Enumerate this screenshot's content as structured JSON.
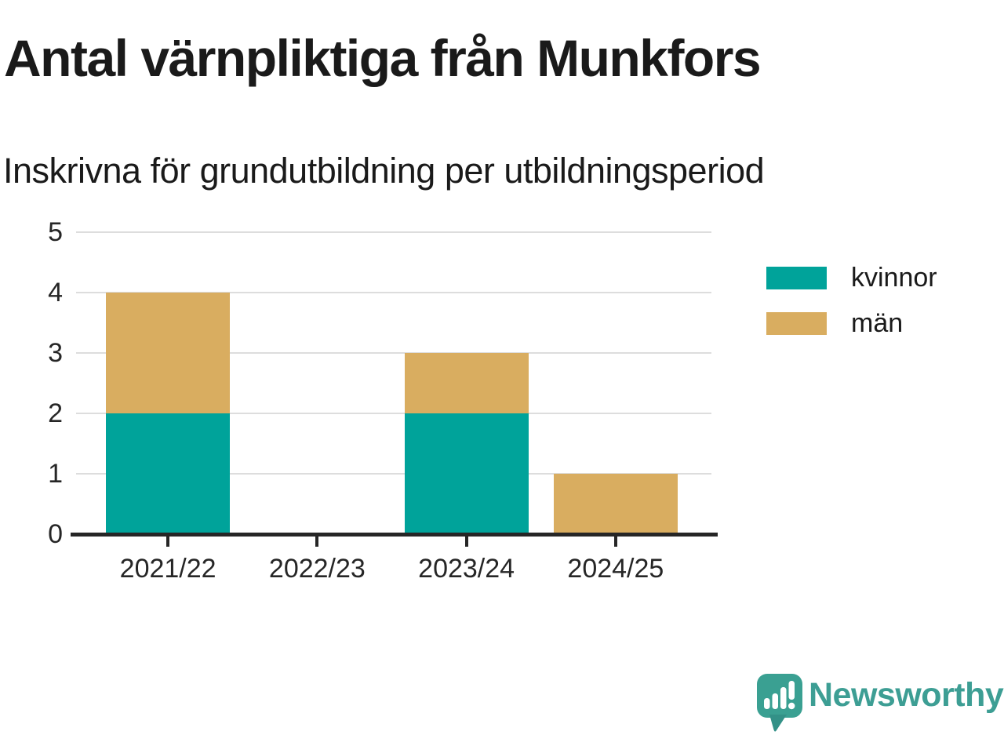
{
  "header": {
    "title": "Antal värnpliktiga från Munkfors",
    "subtitle": "Inskrivna för grundutbildning per utbildningsperiod"
  },
  "chart_data": {
    "type": "bar",
    "stacked": true,
    "title": "Antal värnpliktiga från Munkfors",
    "subtitle": "Inskrivna för grundutbildning per utbildningsperiod",
    "categories": [
      "2021/22",
      "2022/23",
      "2023/24",
      "2024/25"
    ],
    "series": [
      {
        "name": "kvinnor",
        "color": "#00a39a",
        "values": [
          2,
          0,
          2,
          0
        ]
      },
      {
        "name": "män",
        "color": "#d9ad60",
        "values": [
          2,
          0,
          1,
          1
        ]
      }
    ],
    "totals": [
      4,
      0,
      3,
      1
    ],
    "xlabel": "",
    "ylabel": "",
    "ylim": [
      0,
      5
    ],
    "yticks": [
      0,
      1,
      2,
      3,
      4,
      5
    ],
    "grid": true,
    "legend_position": "right"
  },
  "legend": {
    "items": [
      {
        "label": "kvinnor",
        "color": "#00a39a"
      },
      {
        "label": "män",
        "color": "#d9ad60"
      }
    ]
  },
  "footer": {
    "brand": "Newsworthy",
    "brand_color": "#3d9e94",
    "logo_icon": "speech-bubble-bar-chart-exclamation"
  },
  "style_colors": {
    "grid": "#dddddd",
    "axis": "#262626",
    "text": "#1a1a1a"
  }
}
